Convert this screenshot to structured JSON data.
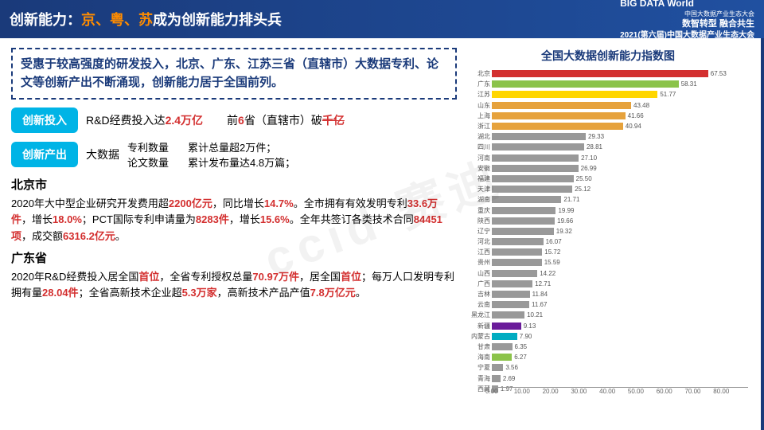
{
  "header": {
    "title_pre": "创新能力：",
    "title_hl": "京、粤、苏",
    "title_post": "成为创新能力排头兵",
    "logo_text": "BIG DATA World",
    "logo_sub": "中国大数据产业生态大会",
    "slogan": "数智转型 融合共生",
    "event": "2021(第六届)中国大数据产业生态大会"
  },
  "intro": "受惠于较高强度的研发投入，北京、广东、江苏三省（直辖市）大数据专利、论文等创新产出不断涌现，创新能力居于全国前列。",
  "pill1": {
    "label": "创新投入",
    "text_a_pre": "R&D经费投入达",
    "text_a_num": "2.4万亿",
    "text_b_pre": "前",
    "text_b_num": "6",
    "text_b_mid": "省（直辖市）破",
    "text_b_strike": "千亿"
  },
  "pill2": {
    "label": "创新产出",
    "big_label": "大数据",
    "row1_l": "专利数量",
    "row1_r": "累计总量超2万件；",
    "row2_l": "论文数量",
    "row2_r": "累计发布量达4.8万篇；"
  },
  "beijing": {
    "title": "北京市",
    "body": "2020年大中型企业研究开发费用超<span class='hl'>2200亿元</span>，同比增长<span class='hl'>14.7%</span>。全市拥有有效发明专利<span class='hl'>33.6万件</span>，增长<span class='hl'>18.0%</span>；PCT国际专利申请量为<span class='hl'>8283件</span>，增长<span class='hl'>15.6%</span>。全年共签订各类技术合同<span class='hl'>84451项</span>，成交额<span class='hl'>6316.2亿元</span>。"
  },
  "guangdong": {
    "title": "广东省",
    "body": "2020年R&D经费投入居全国<span class='hl'>首位</span>，全省专利授权总量<span class='hl'>70.97万件</span>，居全国<span class='hl'>首位</span>；每万人口发明专利拥有量<span class='hl'>28.04件</span>；全省高新技术企业超<span class='hl'>5.3万家</span>，高新技术产品产值<span class='hl'>7.8万亿元</span>。"
  },
  "chart": {
    "title": "全国大数据创新能力指数图",
    "xmax": 80,
    "xticks": [
      "0.00",
      "10.00",
      "20.00",
      "30.00",
      "40.00",
      "50.00",
      "60.00",
      "70.00",
      "80.00"
    ],
    "bars": [
      {
        "name": "北京",
        "val": 67.53,
        "color": "#d32f2f"
      },
      {
        "name": "广东",
        "val": 58.31,
        "color": "#8bc34a"
      },
      {
        "name": "江苏",
        "val": 51.77,
        "color": "#ffd600"
      },
      {
        "name": "山东",
        "val": 43.48,
        "color": "#e6a23c"
      },
      {
        "name": "上海",
        "val": 41.66,
        "color": "#e6a23c"
      },
      {
        "name": "浙江",
        "val": 40.94,
        "color": "#e6a23c"
      },
      {
        "name": "湖北",
        "val": 29.33,
        "color": "#999"
      },
      {
        "name": "四川",
        "val": 28.81,
        "color": "#999"
      },
      {
        "name": "河南",
        "val": 27.1,
        "color": "#999"
      },
      {
        "name": "安徽",
        "val": 26.99,
        "color": "#999"
      },
      {
        "name": "福建",
        "val": 25.5,
        "color": "#999"
      },
      {
        "name": "天津",
        "val": 25.12,
        "color": "#999"
      },
      {
        "name": "湖南",
        "val": 21.71,
        "color": "#999"
      },
      {
        "name": "重庆",
        "val": 19.99,
        "color": "#999"
      },
      {
        "name": "陕西",
        "val": 19.66,
        "color": "#999"
      },
      {
        "name": "辽宁",
        "val": 19.32,
        "color": "#999"
      },
      {
        "name": "河北",
        "val": 16.07,
        "color": "#999"
      },
      {
        "name": "江西",
        "val": 15.72,
        "color": "#999"
      },
      {
        "name": "贵州",
        "val": 15.59,
        "color": "#999"
      },
      {
        "name": "山西",
        "val": 14.22,
        "color": "#999"
      },
      {
        "name": "广西",
        "val": 12.71,
        "color": "#999"
      },
      {
        "name": "吉林",
        "val": 11.84,
        "color": "#999"
      },
      {
        "name": "云南",
        "val": 11.67,
        "color": "#999"
      },
      {
        "name": "黑龙江",
        "val": 10.21,
        "color": "#999"
      },
      {
        "name": "新疆",
        "val": 9.13,
        "color": "#6a1b9a"
      },
      {
        "name": "内蒙古",
        "val": 7.9,
        "color": "#00acc1"
      },
      {
        "name": "甘肃",
        "val": 6.35,
        "color": "#999"
      },
      {
        "name": "海南",
        "val": 6.27,
        "color": "#8bc34a"
      },
      {
        "name": "宁夏",
        "val": 3.56,
        "color": "#999"
      },
      {
        "name": "青海",
        "val": 2.69,
        "color": "#999"
      },
      {
        "name": "西藏",
        "val": 1.97,
        "color": "#999"
      }
    ]
  },
  "watermark": "ccid 赛迪"
}
